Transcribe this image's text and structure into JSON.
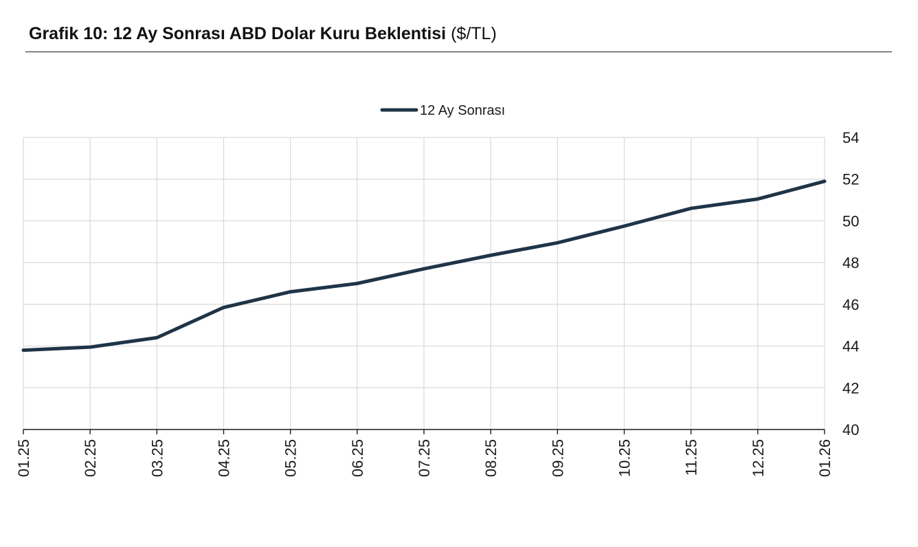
{
  "header": {
    "title_bold": "Grafik 10: 12 Ay Sonrası ABD Dolar Kuru Beklentisi",
    "title_unit": "($/TL)"
  },
  "colors": {
    "series": "#1f3447",
    "grid": "#d9d9d9",
    "axis": "#1a1a1a"
  },
  "chart_data": {
    "type": "line",
    "title": "Grafik 10: 12 Ay Sonrası ABD Dolar Kuru Beklentisi ($/TL)",
    "xlabel": "",
    "ylabel": "",
    "categories": [
      "01.25",
      "02.25",
      "03.25",
      "04.25",
      "05.25",
      "06.25",
      "07.25",
      "08.25",
      "09.25",
      "10.25",
      "11.25",
      "12.25",
      "01.26"
    ],
    "series": [
      {
        "name": "12 Ay Sonrası",
        "values": [
          43.8,
          43.95,
          44.4,
          45.85,
          46.6,
          47.0,
          47.7,
          48.35,
          48.95,
          49.75,
          50.6,
          51.05,
          51.9
        ]
      }
    ],
    "ylim": [
      40,
      54
    ],
    "yticks": [
      40,
      42,
      44,
      46,
      48,
      50,
      52,
      54
    ],
    "y_axis_side": "right",
    "grid": true,
    "legend": "top-center"
  }
}
